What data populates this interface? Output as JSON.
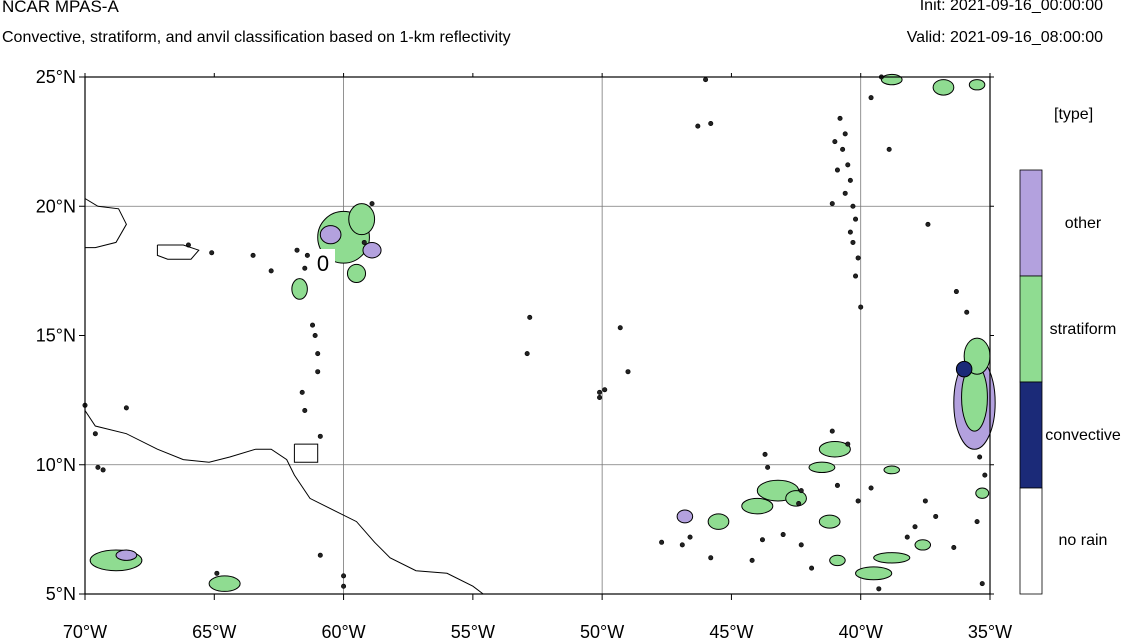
{
  "header": {
    "title": "NCAR MPAS-A",
    "subtitle": "Convective, stratiform, and anvil classification based on 1-km reflectivity",
    "init": "Init: 2021-09-16_00:00:00",
    "valid": "Valid: 2021-09-16_08:00:00"
  },
  "map": {
    "lon_range": [
      -70,
      -35
    ],
    "lat_range": [
      5,
      25
    ],
    "lon_ticks": [
      {
        "value": -70,
        "label": "70°W"
      },
      {
        "value": -65,
        "label": "65°W"
      },
      {
        "value": -60,
        "label": "60°W"
      },
      {
        "value": -55,
        "label": "55°W"
      },
      {
        "value": -50,
        "label": "50°W"
      },
      {
        "value": -45,
        "label": "45°W"
      },
      {
        "value": -40,
        "label": "40°W"
      },
      {
        "value": -35,
        "label": "35°W"
      }
    ],
    "lat_ticks": [
      {
        "value": 5,
        "label": "5°N"
      },
      {
        "value": 10,
        "label": "10°N"
      },
      {
        "value": 15,
        "label": "15°N"
      },
      {
        "value": 20,
        "label": "20°N"
      },
      {
        "value": 25,
        "label": "25°N"
      }
    ],
    "grid_lon": [
      -60,
      -50,
      -40
    ],
    "grid_lat": [
      10,
      20
    ],
    "contour_label": "0",
    "coastlines": [
      [
        [
          -70,
          20.3
        ],
        [
          -69.5,
          20.0
        ],
        [
          -68.7,
          19.9
        ],
        [
          -68.4,
          19.3
        ],
        [
          -68.8,
          18.6
        ],
        [
          -69.6,
          18.4
        ],
        [
          -70,
          18.4
        ]
      ],
      [
        [
          -67.2,
          18.5
        ],
        [
          -66.2,
          18.5
        ],
        [
          -65.6,
          18.3
        ],
        [
          -65.9,
          17.95
        ],
        [
          -66.8,
          17.95
        ],
        [
          -67.2,
          18.1
        ],
        [
          -67.2,
          18.5
        ]
      ],
      [
        [
          -70,
          12.1
        ],
        [
          -69.6,
          11.5
        ],
        [
          -68.4,
          11.2
        ],
        [
          -67.2,
          10.6
        ],
        [
          -66.2,
          10.2
        ],
        [
          -65.2,
          10.1
        ],
        [
          -64.4,
          10.3
        ],
        [
          -63.4,
          10.6
        ],
        [
          -62.8,
          10.6
        ],
        [
          -62.2,
          10.2
        ],
        [
          -61.9,
          9.6
        ],
        [
          -61.3,
          8.7
        ],
        [
          -60.3,
          8.2
        ],
        [
          -59.5,
          7.8
        ],
        [
          -58.8,
          7.0
        ],
        [
          -58.2,
          6.4
        ],
        [
          -57.2,
          5.9
        ],
        [
          -56.0,
          5.8
        ],
        [
          -55.0,
          5.3
        ],
        [
          -54.6,
          5.0
        ]
      ],
      [
        [
          -61.9,
          10.8
        ],
        [
          -61.0,
          10.8
        ],
        [
          -61.0,
          10.1
        ],
        [
          -61.9,
          10.1
        ],
        [
          -61.9,
          10.8
        ]
      ]
    ]
  },
  "legend": {
    "title": "[type]",
    "items": [
      {
        "label": "other",
        "color": "#b3a1de"
      },
      {
        "label": "stratiform",
        "color": "#8fdc91"
      },
      {
        "label": "convective",
        "color": "#1b2a78"
      },
      {
        "label": "no rain",
        "color": "#ffffff"
      }
    ]
  },
  "precip_cells": [
    {
      "lon": -60.0,
      "lat": 18.8,
      "rx": 1.0,
      "ry": 1.0,
      "type": "stratiform"
    },
    {
      "lon": -59.3,
      "lat": 19.5,
      "rx": 0.5,
      "ry": 0.6,
      "type": "stratiform"
    },
    {
      "lon": -60.5,
      "lat": 18.9,
      "rx": 0.4,
      "ry": 0.35,
      "type": "other"
    },
    {
      "lon": -58.9,
      "lat": 18.3,
      "rx": 0.35,
      "ry": 0.3,
      "type": "other"
    },
    {
      "lon": -59.5,
      "lat": 17.4,
      "rx": 0.35,
      "ry": 0.35,
      "type": "stratiform"
    },
    {
      "lon": -61.7,
      "lat": 16.8,
      "rx": 0.3,
      "ry": 0.4,
      "type": "stratiform"
    },
    {
      "lon": -68.8,
      "lat": 6.3,
      "rx": 1.0,
      "ry": 0.4,
      "type": "stratiform"
    },
    {
      "lon": -68.4,
      "lat": 6.5,
      "rx": 0.4,
      "ry": 0.2,
      "type": "other"
    },
    {
      "lon": -64.6,
      "lat": 5.4,
      "rx": 0.6,
      "ry": 0.3,
      "type": "stratiform"
    },
    {
      "lon": -35.6,
      "lat": 12.4,
      "rx": 0.8,
      "ry": 1.8,
      "type": "other"
    },
    {
      "lon": -35.6,
      "lat": 12.6,
      "rx": 0.5,
      "ry": 1.3,
      "type": "stratiform"
    },
    {
      "lon": -35.5,
      "lat": 14.2,
      "rx": 0.5,
      "ry": 0.7,
      "type": "stratiform"
    },
    {
      "lon": -36.0,
      "lat": 13.7,
      "rx": 0.3,
      "ry": 0.3,
      "type": "convective"
    },
    {
      "lon": -43.2,
      "lat": 9.0,
      "rx": 0.8,
      "ry": 0.4,
      "type": "stratiform"
    },
    {
      "lon": -44.0,
      "lat": 8.4,
      "rx": 0.6,
      "ry": 0.3,
      "type": "stratiform"
    },
    {
      "lon": -42.5,
      "lat": 8.7,
      "rx": 0.4,
      "ry": 0.3,
      "type": "stratiform"
    },
    {
      "lon": -41.0,
      "lat": 10.6,
      "rx": 0.6,
      "ry": 0.3,
      "type": "stratiform"
    },
    {
      "lon": -41.5,
      "lat": 9.9,
      "rx": 0.5,
      "ry": 0.2,
      "type": "stratiform"
    },
    {
      "lon": -45.5,
      "lat": 7.8,
      "rx": 0.4,
      "ry": 0.3,
      "type": "stratiform"
    },
    {
      "lon": -46.8,
      "lat": 8.0,
      "rx": 0.3,
      "ry": 0.25,
      "type": "other"
    },
    {
      "lon": -41.2,
      "lat": 7.8,
      "rx": 0.4,
      "ry": 0.25,
      "type": "stratiform"
    },
    {
      "lon": -40.9,
      "lat": 6.3,
      "rx": 0.3,
      "ry": 0.2,
      "type": "stratiform"
    },
    {
      "lon": -38.8,
      "lat": 6.4,
      "rx": 0.7,
      "ry": 0.2,
      "type": "stratiform"
    },
    {
      "lon": -39.5,
      "lat": 5.8,
      "rx": 0.7,
      "ry": 0.25,
      "type": "stratiform"
    },
    {
      "lon": -37.6,
      "lat": 6.9,
      "rx": 0.3,
      "ry": 0.2,
      "type": "stratiform"
    },
    {
      "lon": -38.8,
      "lat": 9.8,
      "rx": 0.3,
      "ry": 0.15,
      "type": "stratiform"
    },
    {
      "lon": -35.3,
      "lat": 8.9,
      "rx": 0.25,
      "ry": 0.2,
      "type": "stratiform"
    },
    {
      "lon": -36.8,
      "lat": 24.6,
      "rx": 0.4,
      "ry": 0.3,
      "type": "stratiform"
    },
    {
      "lon": -38.8,
      "lat": 24.9,
      "rx": 0.4,
      "ry": 0.2,
      "type": "stratiform"
    },
    {
      "lon": -35.5,
      "lat": 24.7,
      "rx": 0.3,
      "ry": 0.2,
      "type": "stratiform"
    }
  ],
  "speckles": [
    [
      -40.8,
      23.4
    ],
    [
      -40.6,
      22.8
    ],
    [
      -40.7,
      22.2
    ],
    [
      -40.5,
      21.6
    ],
    [
      -40.4,
      21.0
    ],
    [
      -40.6,
      20.5
    ],
    [
      -40.3,
      20.0
    ],
    [
      -40.2,
      19.5
    ],
    [
      -40.4,
      19.0
    ],
    [
      -40.3,
      18.6
    ],
    [
      -40.1,
      18.0
    ],
    [
      -40.2,
      17.3
    ],
    [
      -41.0,
      22.5
    ],
    [
      -40.9,
      21.4
    ],
    [
      -41.1,
      20.1
    ],
    [
      -38.9,
      22.2
    ],
    [
      -37.4,
      19.3
    ],
    [
      -36.3,
      16.7
    ],
    [
      -35.9,
      15.9
    ],
    [
      -40.0,
      16.1
    ],
    [
      -46.0,
      24.9
    ],
    [
      -39.6,
      24.2
    ],
    [
      -39.2,
      25.0
    ],
    [
      -46.3,
      23.1
    ],
    [
      -45.8,
      23.2
    ],
    [
      -52.8,
      15.7
    ],
    [
      -52.9,
      14.3
    ],
    [
      -50.1,
      12.8
    ],
    [
      -50.1,
      12.6
    ],
    [
      -49.9,
      12.9
    ],
    [
      -49.0,
      13.6
    ],
    [
      -49.3,
      15.3
    ],
    [
      -61.4,
      18.1
    ],
    [
      -61.8,
      18.3
    ],
    [
      -61.5,
      17.6
    ],
    [
      -62.8,
      17.5
    ],
    [
      -61.2,
      15.4
    ],
    [
      -61.1,
      15.0
    ],
    [
      -61.0,
      14.3
    ],
    [
      -61.0,
      13.6
    ],
    [
      -61.6,
      12.8
    ],
    [
      -61.5,
      12.1
    ],
    [
      -60.9,
      11.1
    ],
    [
      -59.2,
      18.6
    ],
    [
      -58.9,
      20.1
    ],
    [
      -69.6,
      11.2
    ],
    [
      -69.5,
      9.9
    ],
    [
      -69.3,
      9.8
    ],
    [
      -70.0,
      12.3
    ],
    [
      -68.4,
      12.2
    ],
    [
      -66.0,
      18.5
    ],
    [
      -65.1,
      18.2
    ],
    [
      -63.5,
      18.1
    ],
    [
      -64.9,
      5.8
    ],
    [
      -60.9,
      6.5
    ],
    [
      -60.0,
      5.7
    ],
    [
      -60.0,
      5.3
    ],
    [
      -47.7,
      7.0
    ],
    [
      -46.6,
      7.2
    ],
    [
      -46.9,
      6.9
    ],
    [
      -45.8,
      6.4
    ],
    [
      -43.8,
      7.1
    ],
    [
      -44.2,
      6.3
    ],
    [
      -42.3,
      9.0
    ],
    [
      -42.4,
      8.5
    ],
    [
      -40.9,
      9.2
    ],
    [
      -40.1,
      8.6
    ],
    [
      -39.6,
      9.1
    ],
    [
      -38.2,
      7.2
    ],
    [
      -37.9,
      7.6
    ],
    [
      -37.5,
      8.6
    ],
    [
      -37.1,
      8.0
    ],
    [
      -36.4,
      6.8
    ],
    [
      -35.5,
      7.8
    ],
    [
      -35.3,
      5.4
    ],
    [
      -35.4,
      10.3
    ],
    [
      -35.2,
      9.6
    ],
    [
      -39.3,
      5.2
    ],
    [
      -41.9,
      6.0
    ],
    [
      -42.3,
      6.9
    ],
    [
      -43.0,
      7.3
    ],
    [
      -43.6,
      9.9
    ],
    [
      -43.7,
      10.4
    ],
    [
      -41.1,
      11.3
    ],
    [
      -40.5,
      10.8
    ]
  ]
}
